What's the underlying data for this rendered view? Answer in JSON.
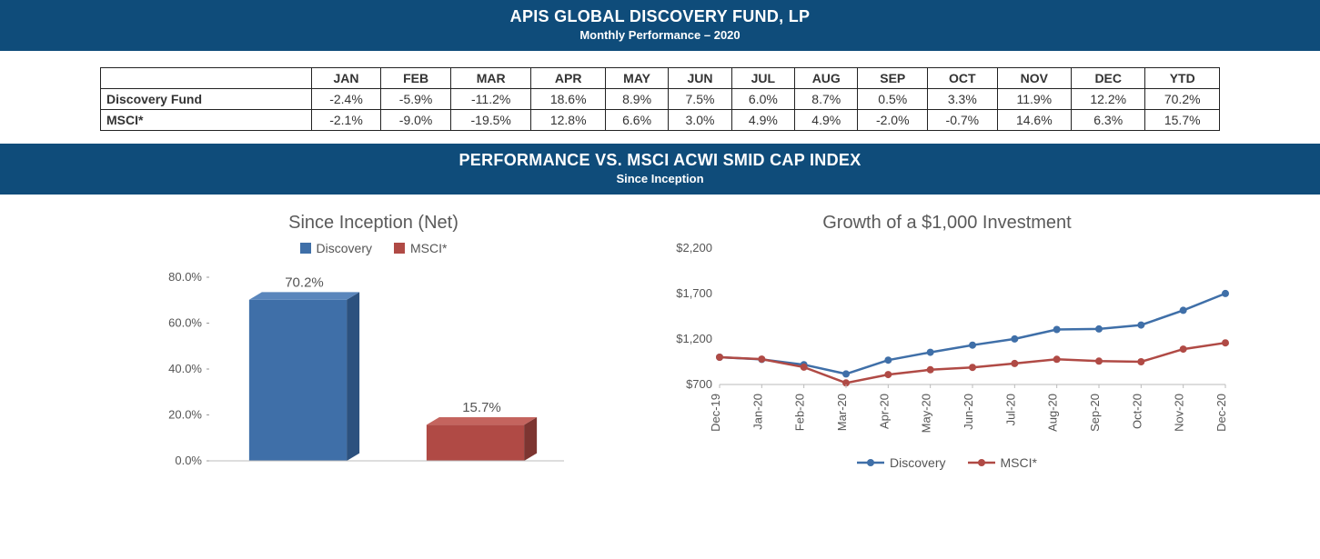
{
  "banner1": {
    "title": "APIS GLOBAL DISCOVERY FUND, LP",
    "subtitle": "Monthly Performance – 2020",
    "bg": "#0f4c7a"
  },
  "banner2": {
    "title": "PERFORMANCE VS. MSCI ACWI SMID CAP INDEX",
    "subtitle": "Since Inception",
    "bg": "#0f4c7a"
  },
  "table": {
    "row_label_header": "",
    "columns": [
      "JAN",
      "FEB",
      "MAR",
      "APR",
      "MAY",
      "JUN",
      "JUL",
      "AUG",
      "SEP",
      "OCT",
      "NOV",
      "DEC",
      "YTD"
    ],
    "rows": [
      {
        "label": "Discovery Fund",
        "cells": [
          "-2.4%",
          "-5.9%",
          "-11.2%",
          "18.6%",
          "8.9%",
          "7.5%",
          "6.0%",
          "8.7%",
          "0.5%",
          "3.3%",
          "11.9%",
          "12.2%",
          "70.2%"
        ]
      },
      {
        "label": "MSCI*",
        "cells": [
          "-2.1%",
          "-9.0%",
          "-19.5%",
          "12.8%",
          "6.6%",
          "3.0%",
          "4.9%",
          "4.9%",
          "-2.0%",
          "-0.7%",
          "14.6%",
          "6.3%",
          "15.7%"
        ]
      }
    ],
    "border_color": "#222222",
    "font_size": 14
  },
  "bar_chart": {
    "type": "bar",
    "title": "Since Inception (Net)",
    "legend": [
      {
        "label": "Discovery",
        "color": "#3f6fa8"
      },
      {
        "label": "MSCI*",
        "color": "#b04a45"
      }
    ],
    "categories": [
      "Discovery",
      "MSCI*"
    ],
    "values": [
      70.2,
      15.7
    ],
    "value_labels": [
      "70.2%",
      "15.7%"
    ],
    "bar_colors": [
      "#3f6fa8",
      "#b04a45"
    ],
    "bar_side_colors": [
      "#2c517e",
      "#7d3531"
    ],
    "bar_top_colors": [
      "#5a86bc",
      "#c4645e"
    ],
    "ylim": [
      0,
      80
    ],
    "ytick_step": 20,
    "ytick_labels": [
      "0.0%",
      "20.0%",
      "40.0%",
      "60.0%",
      "80.0%"
    ],
    "bar_width": 0.55,
    "plot_bg": "#ffffff",
    "title_fontsize": 20,
    "tick_fontsize": 13,
    "value_fontsize": 15
  },
  "line_chart": {
    "type": "line",
    "title": "Growth of a $1,000 Investment",
    "legend": [
      {
        "label": "Discovery",
        "color": "#3f6fa8"
      },
      {
        "label": "MSCI*",
        "color": "#b04a45"
      }
    ],
    "x_labels": [
      "Dec-19",
      "Jan-20",
      "Feb-20",
      "Mar-20",
      "Apr-20",
      "May-20",
      "Jun-20",
      "Jul-20",
      "Aug-20",
      "Sep-20",
      "Oct-20",
      "Nov-20",
      "Dec-20"
    ],
    "series": [
      {
        "name": "Discovery",
        "color": "#3f6fa8",
        "values": [
          1000,
          976,
          918,
          816,
          968,
          1054,
          1133,
          1201,
          1305,
          1311,
          1354,
          1516,
          1701
        ]
      },
      {
        "name": "MSCI*",
        "color": "#b04a45",
        "values": [
          1000,
          979,
          891,
          717,
          809,
          862,
          888,
          931,
          977,
          957,
          950,
          1089,
          1158
        ]
      }
    ],
    "ylim": [
      700,
      2200
    ],
    "yticks": [
      700,
      1200,
      1700,
      2200
    ],
    "ytick_labels": [
      "$700",
      "$1,200",
      "$1,700",
      "$2,200"
    ],
    "line_width": 2.5,
    "marker_radius": 4,
    "marker_style": "circle",
    "plot_bg": "#ffffff",
    "title_fontsize": 20,
    "tick_fontsize": 13
  }
}
